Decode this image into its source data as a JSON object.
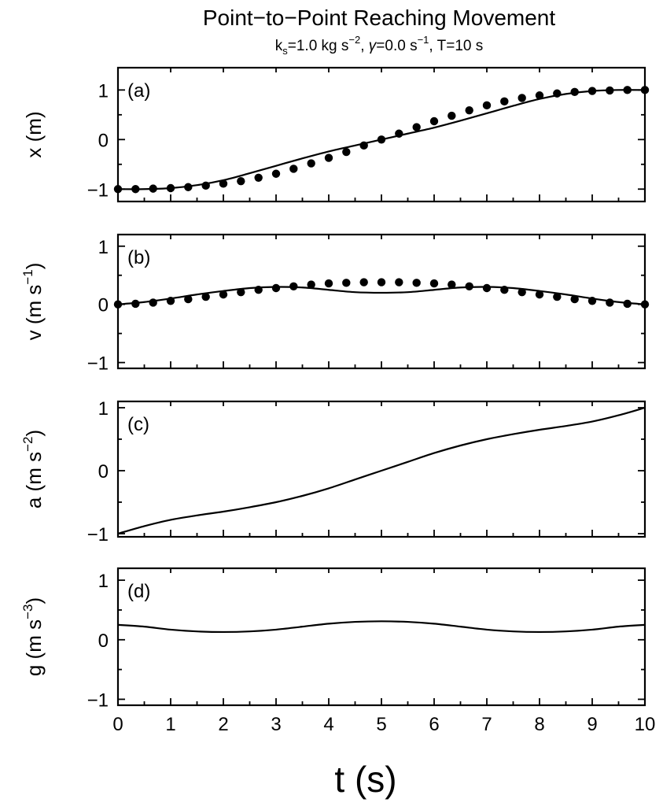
{
  "chart_data": {
    "type": "line",
    "title": "Point−to−Point Reaching Movement",
    "subtitle": {
      "k_sym": "k",
      "k_sub": "s",
      "k_val": "=1.0 kg s",
      "k_exp": "−2",
      "sep1": ", ",
      "gamma_sym": "γ",
      "gamma_val": "=0.0 s",
      "gamma_exp": "−1",
      "rest": ", T=10 s"
    },
    "xlabel": "t (s)",
    "xlim": [
      0,
      10
    ],
    "x_ticks": [
      0,
      1,
      2,
      3,
      4,
      5,
      6,
      7,
      8,
      9,
      10
    ],
    "x_tick_labels": [
      "0",
      "1",
      "2",
      "3",
      "4",
      "5",
      "6",
      "7",
      "8",
      "9",
      "10"
    ],
    "panels": [
      {
        "id": "a",
        "label": "(a)",
        "ylabel": {
          "main": "x (m)",
          "exp": ""
        },
        "ylim": [
          -1.25,
          1.45
        ],
        "y_ticks": [
          -1,
          0,
          1
        ],
        "y_tick_labels": [
          "−1",
          "0",
          "1"
        ],
        "series": [
          {
            "kind": "line",
            "x": [
              0,
              0.5,
              1,
              1.5,
              2,
              2.5,
              3,
              3.5,
              4,
              4.5,
              5,
              5.5,
              6,
              6.5,
              7,
              7.5,
              8,
              8.5,
              9,
              9.5,
              10
            ],
            "y": [
              -1.0,
              -1.0,
              -0.98,
              -0.92,
              -0.82,
              -0.68,
              -0.53,
              -0.38,
              -0.24,
              -0.12,
              0.0,
              0.12,
              0.24,
              0.38,
              0.53,
              0.68,
              0.82,
              0.92,
              0.98,
              1.0,
              1.0
            ]
          },
          {
            "kind": "scatter",
            "x": [
              0,
              0.333,
              0.667,
              1.0,
              1.333,
              1.667,
              2.0,
              2.333,
              2.667,
              3.0,
              3.333,
              3.667,
              4.0,
              4.333,
              4.667,
              5.0,
              5.333,
              5.667,
              6.0,
              6.333,
              6.667,
              7.0,
              7.333,
              7.667,
              8.0,
              8.333,
              8.667,
              9.0,
              9.333,
              9.667,
              10.0
            ],
            "y": [
              -1.0,
              -1.0,
              -0.99,
              -0.98,
              -0.96,
              -0.93,
              -0.89,
              -0.84,
              -0.77,
              -0.69,
              -0.59,
              -0.48,
              -0.37,
              -0.25,
              -0.12,
              0.0,
              0.12,
              0.25,
              0.37,
              0.48,
              0.59,
              0.69,
              0.77,
              0.84,
              0.89,
              0.93,
              0.96,
              0.98,
              0.99,
              1.0,
              1.0
            ]
          }
        ]
      },
      {
        "id": "b",
        "label": "(b)",
        "ylabel": {
          "main": "v (m s",
          "exp": "−1",
          "close": ")"
        },
        "ylim": [
          -1.1,
          1.2
        ],
        "y_ticks": [
          -1,
          0,
          1
        ],
        "y_tick_labels": [
          "−1",
          "0",
          "1"
        ],
        "series": [
          {
            "kind": "line",
            "x": [
              0,
              0.5,
              1,
              1.5,
              2,
              2.5,
              3,
              3.5,
              4,
              4.5,
              5,
              5.5,
              6,
              6.5,
              7,
              7.5,
              8,
              8.5,
              9,
              9.5,
              10
            ],
            "y": [
              0.0,
              0.04,
              0.1,
              0.17,
              0.23,
              0.28,
              0.3,
              0.29,
              0.25,
              0.21,
              0.2,
              0.21,
              0.25,
              0.29,
              0.3,
              0.28,
              0.23,
              0.17,
              0.1,
              0.04,
              0.0
            ]
          },
          {
            "kind": "scatter",
            "x": [
              0,
              0.333,
              0.667,
              1.0,
              1.333,
              1.667,
              2.0,
              2.333,
              2.667,
              3.0,
              3.333,
              3.667,
              4.0,
              4.333,
              4.667,
              5.0,
              5.333,
              5.667,
              6.0,
              6.333,
              6.667,
              7.0,
              7.333,
              7.667,
              8.0,
              8.333,
              8.667,
              9.0,
              9.333,
              9.667,
              10.0
            ],
            "y": [
              0.0,
              0.01,
              0.03,
              0.06,
              0.09,
              0.13,
              0.17,
              0.21,
              0.25,
              0.28,
              0.31,
              0.34,
              0.36,
              0.37,
              0.38,
              0.38,
              0.38,
              0.37,
              0.36,
              0.34,
              0.31,
              0.28,
              0.25,
              0.21,
              0.17,
              0.13,
              0.09,
              0.06,
              0.03,
              0.01,
              0.0
            ]
          }
        ]
      },
      {
        "id": "c",
        "label": "(c)",
        "ylabel": {
          "main": "a (m s",
          "exp": "−2",
          "close": ")"
        },
        "ylim": [
          -1.05,
          1.1
        ],
        "y_ticks": [
          -1,
          0,
          1
        ],
        "y_tick_labels": [
          "−1",
          "0",
          "1"
        ],
        "series": [
          {
            "kind": "line",
            "x": [
              0,
              0.5,
              1,
              1.5,
              2,
              2.5,
              3,
              3.5,
              4,
              4.5,
              5,
              5.5,
              6,
              6.5,
              7,
              7.5,
              8,
              8.5,
              9,
              9.5,
              10
            ],
            "y": [
              -1.0,
              -0.88,
              -0.78,
              -0.71,
              -0.65,
              -0.58,
              -0.5,
              -0.4,
              -0.28,
              -0.14,
              0.0,
              0.14,
              0.28,
              0.4,
              0.5,
              0.58,
              0.65,
              0.71,
              0.78,
              0.88,
              1.0
            ]
          }
        ]
      },
      {
        "id": "d",
        "label": "(d)",
        "ylabel": {
          "main": "g (m s",
          "exp": "−3",
          "close": ")"
        },
        "ylim": [
          -1.1,
          1.2
        ],
        "y_ticks": [
          -1,
          0,
          1
        ],
        "y_tick_labels": [
          "−1",
          "0",
          "1"
        ],
        "series": [
          {
            "kind": "line",
            "x": [
              0,
              0.5,
              1,
              1.5,
              2,
              2.5,
              3,
              3.5,
              4,
              4.5,
              5,
              5.5,
              6,
              6.5,
              7,
              7.5,
              8,
              8.5,
              9,
              9.5,
              10
            ],
            "y": [
              0.25,
              0.22,
              0.17,
              0.14,
              0.13,
              0.14,
              0.17,
              0.22,
              0.27,
              0.3,
              0.31,
              0.3,
              0.27,
              0.22,
              0.17,
              0.14,
              0.13,
              0.14,
              0.17,
              0.22,
              0.25
            ]
          }
        ]
      }
    ]
  }
}
